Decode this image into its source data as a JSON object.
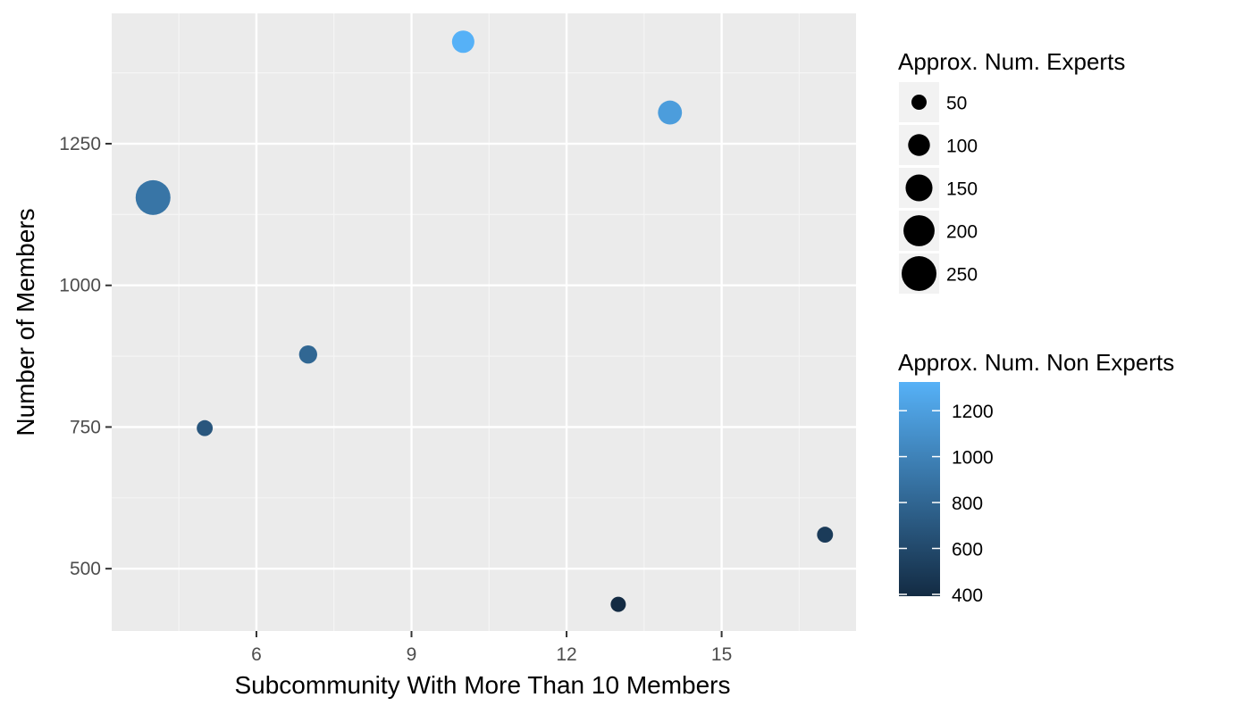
{
  "chart_data": {
    "type": "scatter",
    "title": "",
    "xlabel": "Subcommunity With More Than 10 Members",
    "ylabel": "Number of Members",
    "xlim": [
      3.2,
      17.6
    ],
    "ylim": [
      390,
      1480
    ],
    "x_ticks": [
      6,
      9,
      12,
      15
    ],
    "y_ticks": [
      500,
      750,
      1000,
      1250
    ],
    "grid": true,
    "legend_position": "right",
    "points": [
      {
        "x": 4,
        "y": 1155,
        "experts": 250,
        "non_experts": 905
      },
      {
        "x": 5,
        "y": 748,
        "experts": 55,
        "non_experts": 693
      },
      {
        "x": 7,
        "y": 878,
        "experts": 70,
        "non_experts": 808
      },
      {
        "x": 10,
        "y": 1430,
        "experts": 105,
        "non_experts": 1325
      },
      {
        "x": 13,
        "y": 437,
        "experts": 45,
        "non_experts": 392
      },
      {
        "x": 14,
        "y": 1305,
        "experts": 120,
        "non_experts": 1185
      },
      {
        "x": 17,
        "y": 560,
        "experts": 55,
        "non_experts": 505
      }
    ],
    "size_legend": {
      "title": "Approx. Num. Experts",
      "entries": [
        50,
        100,
        150,
        200,
        250
      ]
    },
    "color_legend": {
      "title": "Approx. Num. Non Experts",
      "min": 392,
      "max": 1325,
      "ticks": [
        400,
        600,
        800,
        1000,
        1200
      ],
      "low_color": "#132B43",
      "high_color": "#56B1F7"
    },
    "colors": {
      "panel_bg": "#EBEBEB",
      "grid_major": "#FFFFFF",
      "axis_text": "#4D4D4D"
    }
  }
}
